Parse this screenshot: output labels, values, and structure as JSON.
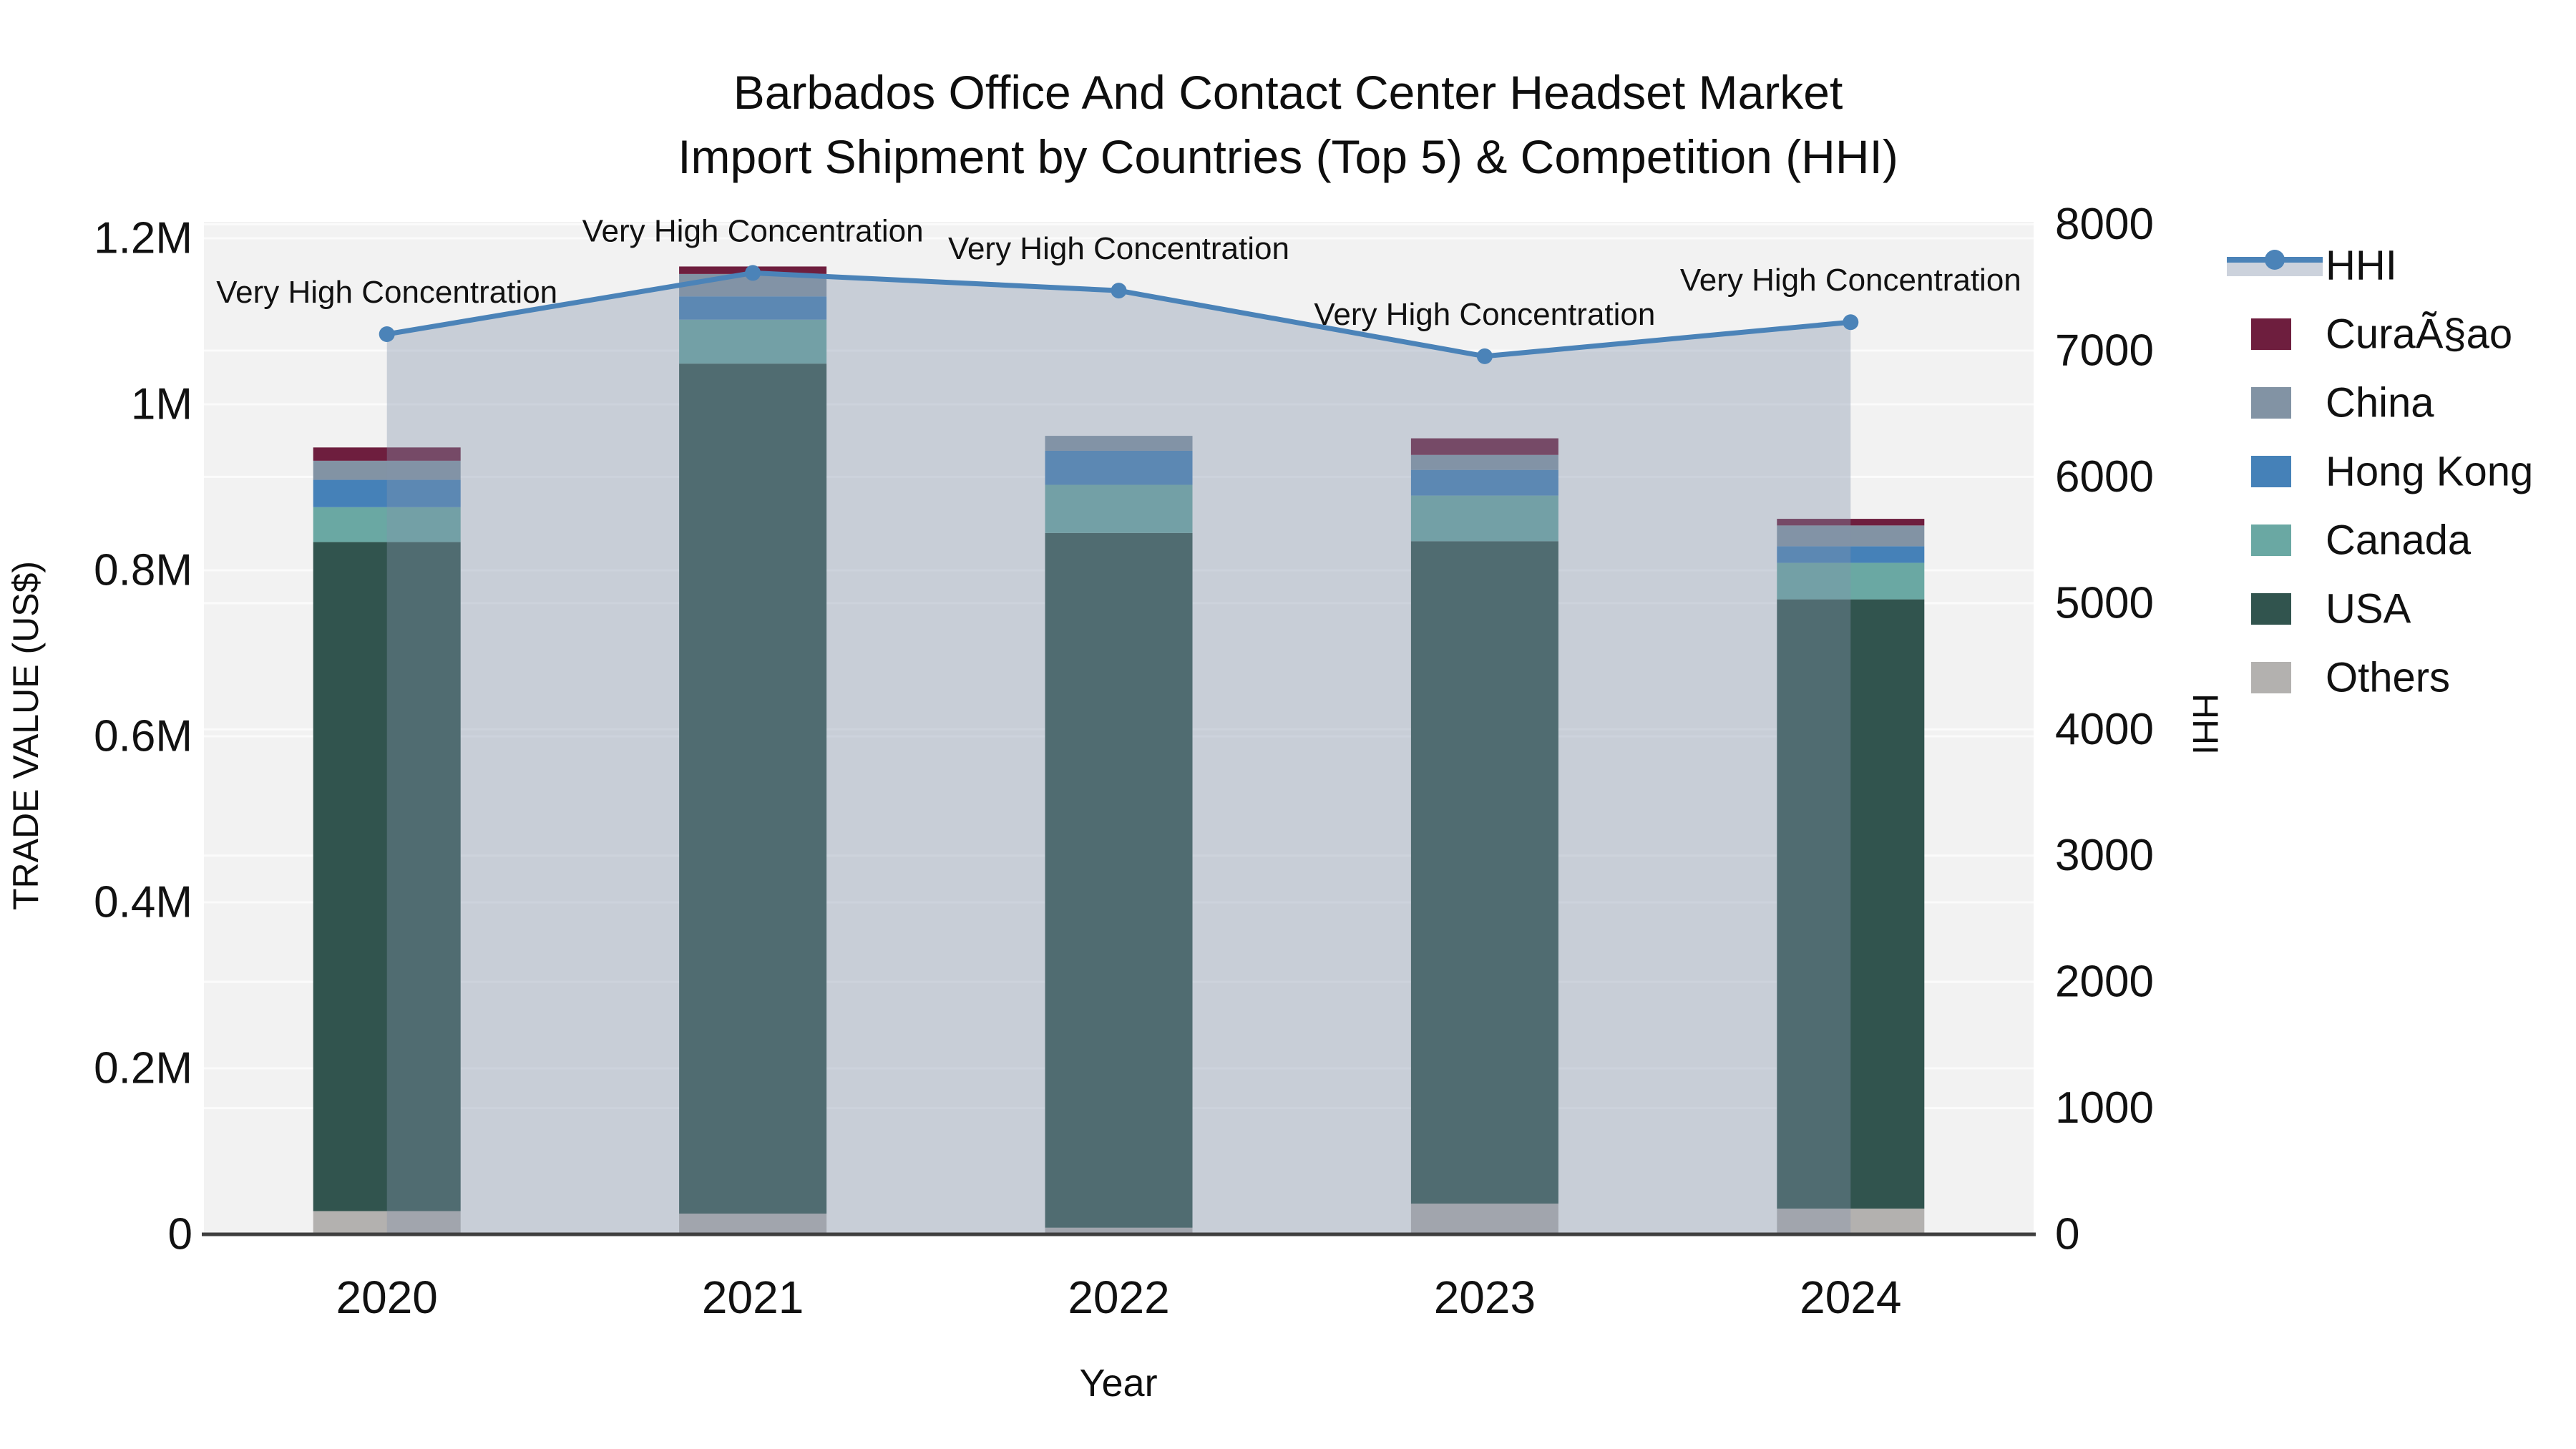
{
  "title": {
    "line1": "Barbados Office And Contact Center Headset Market",
    "line2": "Import Shipment by Countries (Top 5) & Competition (HHI)"
  },
  "chart_data": {
    "type": "bar+line",
    "title": "Barbados Office And Contact Center Headset Market Import Shipment by Countries (Top 5) & Competition (HHI)",
    "xlabel": "Year",
    "ylabel_left": "TRADE VALUE (US$)",
    "ylabel_right": "HHI",
    "categories": [
      "2020",
      "2021",
      "2022",
      "2023",
      "2024"
    ],
    "bar_series": [
      {
        "name": "Others",
        "color": "#b3b1af",
        "values": [
          28000,
          25000,
          8000,
          37000,
          31000
        ]
      },
      {
        "name": "USA",
        "color": "#31544e",
        "values": [
          806000,
          1024000,
          837000,
          798000,
          734000
        ]
      },
      {
        "name": "Canada",
        "color": "#6aa8a3",
        "values": [
          42000,
          53000,
          58000,
          55000,
          44000
        ]
      },
      {
        "name": "Hong Kong",
        "color": "#4581b8",
        "values": [
          33000,
          28000,
          41000,
          31000,
          20000
        ]
      },
      {
        "name": "China",
        "color": "#8293a4",
        "values": [
          23000,
          27000,
          18000,
          18000,
          25000
        ]
      },
      {
        "name": "CuraÃ§ao",
        "color": "#6e1e3e",
        "values": [
          16000,
          9000,
          0,
          20000,
          8000
        ]
      }
    ],
    "bar_totals": [
      948000,
      1166000,
      962000,
      959000,
      862000
    ],
    "line_series": {
      "name": "HHI",
      "color": "#4b83b8",
      "marker": "circle",
      "values": [
        7130,
        7615,
        7475,
        6955,
        7225
      ],
      "area_fill": "rgba(132,146,170,0.38)",
      "legend_band_color": "#ccd2dc"
    },
    "annotations": [
      "Very High Concentration",
      "Very High Concentration",
      "Very High Concentration",
      "Very High Concentration",
      "Very High Concentration"
    ],
    "y_left": {
      "ticks": [
        {
          "label": "0",
          "value": 0
        },
        {
          "label": "0.2M",
          "value": 200000
        },
        {
          "label": "0.4M",
          "value": 400000
        },
        {
          "label": "0.6M",
          "value": 600000
        },
        {
          "label": "0.8M",
          "value": 800000
        },
        {
          "label": "1M",
          "value": 1000000
        },
        {
          "label": "1.2M",
          "value": 1200000
        }
      ],
      "range": [
        0,
        1215000
      ]
    },
    "y_right": {
      "ticks": [
        {
          "label": "0",
          "value": 0
        },
        {
          "label": "1000",
          "value": 1000
        },
        {
          "label": "2000",
          "value": 2000
        },
        {
          "label": "3000",
          "value": 3000
        },
        {
          "label": "4000",
          "value": 4000
        },
        {
          "label": "5000",
          "value": 5000
        },
        {
          "label": "6000",
          "value": 6000
        },
        {
          "label": "7000",
          "value": 7000
        },
        {
          "label": "8000",
          "value": 8000
        }
      ],
      "range": [
        0,
        8010
      ]
    },
    "legend": {
      "position": "right",
      "entries": [
        "HHI",
        "CuraÃ§ao",
        "China",
        "Hong Kong",
        "Canada",
        "USA",
        "Others"
      ]
    },
    "grid": "on",
    "plot_bg": "#f2f2f2",
    "grid_color": "#fbfbfb",
    "axisline_color": "#3f3f3f",
    "text_color": "#111111"
  }
}
